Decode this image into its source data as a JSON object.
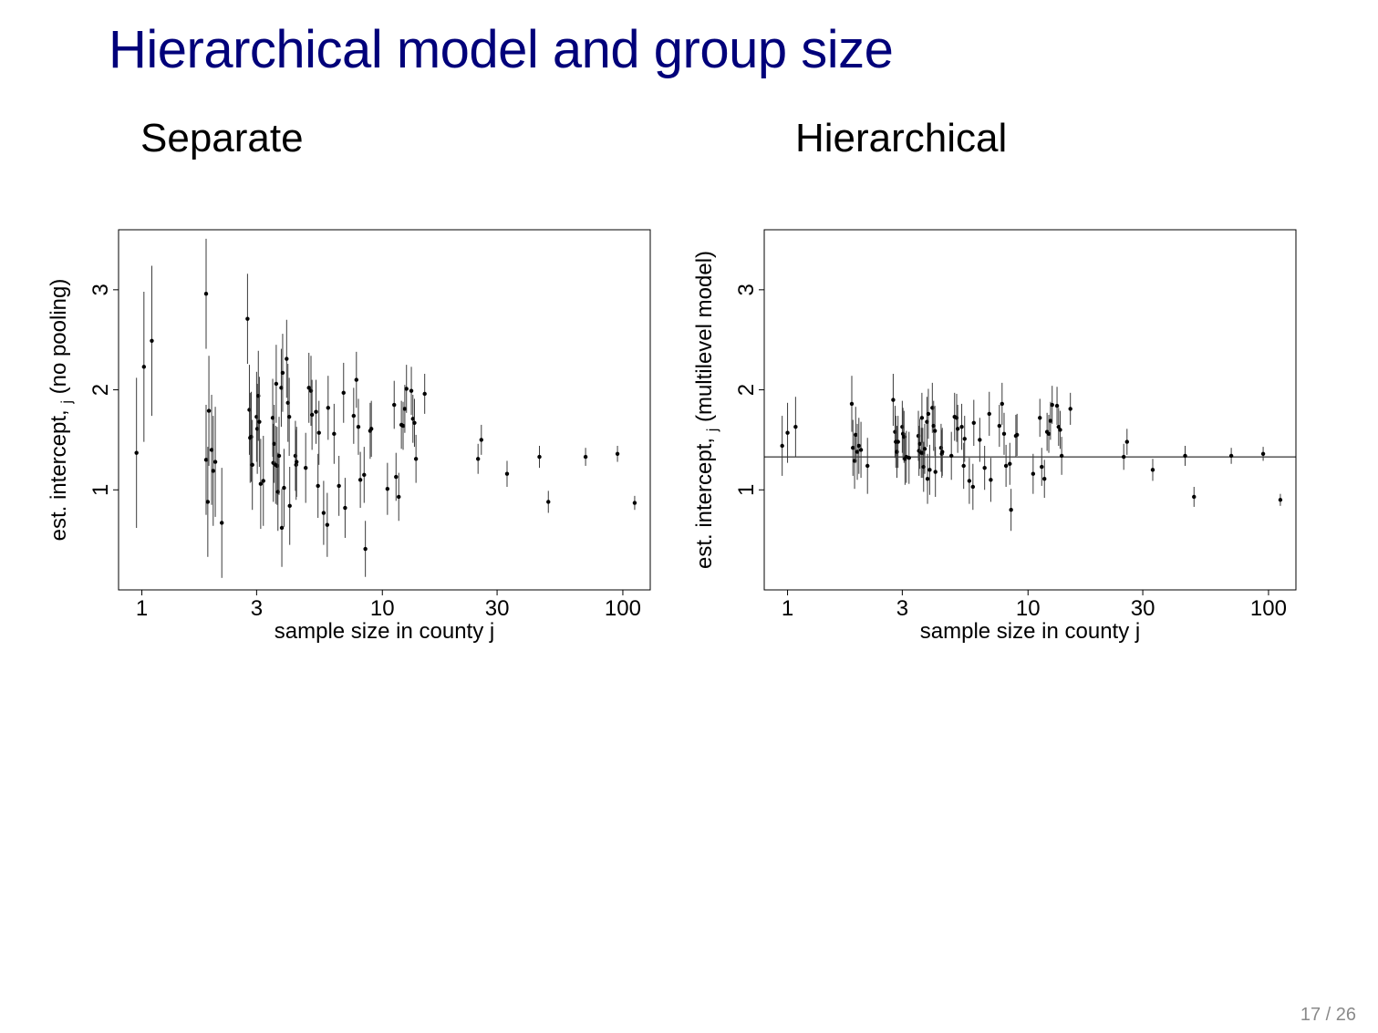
{
  "slide": {
    "title": "Hierarchical model and group size",
    "page_number": "17 / 26"
  },
  "colors": {
    "title": "#00007a",
    "points": "#000000",
    "intervals": "#3a3a3a",
    "frame": "#000000"
  },
  "chart_data": [
    {
      "type": "scatter",
      "title": "Separate",
      "xlabel": "sample size in county j",
      "ylabel": "est. intercept, α_j (no pooling)",
      "ylabel_parts": [
        "est. intercept,",
        "j",
        "(no pooling)"
      ],
      "x_scale": "log",
      "xlim": [
        0.8,
        130
      ],
      "ylim": [
        0,
        3.6
      ],
      "xticks": [
        1,
        3,
        10,
        30,
        100
      ],
      "xtick_labels": [
        "1",
        "3",
        "10",
        "30",
        "100"
      ],
      "yticks": [
        1,
        2,
        3
      ],
      "ytick_labels": [
        "1",
        "2",
        "3"
      ],
      "grid": false,
      "legend": null,
      "points": [
        {
          "x": 0.95,
          "y": 1.37,
          "lo": 0.62,
          "hi": 2.12
        },
        {
          "x": 1.02,
          "y": 2.23,
          "lo": 1.48,
          "hi": 2.98
        },
        {
          "x": 1.1,
          "y": 2.49,
          "lo": 1.74,
          "hi": 3.24
        },
        {
          "x": 1.85,
          "y": 2.96,
          "lo": 2.41,
          "hi": 3.51
        },
        {
          "x": 1.85,
          "y": 1.3,
          "lo": 0.75,
          "hi": 1.85
        },
        {
          "x": 1.88,
          "y": 0.88,
          "lo": 0.33,
          "hi": 1.43
        },
        {
          "x": 1.9,
          "y": 1.79,
          "lo": 1.24,
          "hi": 2.34
        },
        {
          "x": 1.95,
          "y": 1.4,
          "lo": 0.85,
          "hi": 1.95
        },
        {
          "x": 1.98,
          "y": 1.19,
          "lo": 0.64,
          "hi": 1.74
        },
        {
          "x": 2.02,
          "y": 1.28,
          "lo": 0.73,
          "hi": 1.83
        },
        {
          "x": 2.15,
          "y": 0.67,
          "lo": 0.12,
          "hi": 1.22
        },
        {
          "x": 2.75,
          "y": 2.71,
          "lo": 2.26,
          "hi": 3.16
        },
        {
          "x": 2.8,
          "y": 1.8,
          "lo": 1.35,
          "hi": 2.25
        },
        {
          "x": 2.82,
          "y": 1.52,
          "lo": 1.07,
          "hi": 1.97
        },
        {
          "x": 2.85,
          "y": 1.53,
          "lo": 1.08,
          "hi": 1.98
        },
        {
          "x": 2.88,
          "y": 1.25,
          "lo": 0.8,
          "hi": 1.7
        },
        {
          "x": 3.0,
          "y": 1.73,
          "lo": 1.28,
          "hi": 2.18
        },
        {
          "x": 3.02,
          "y": 1.61,
          "lo": 1.16,
          "hi": 2.06
        },
        {
          "x": 3.05,
          "y": 1.94,
          "lo": 1.49,
          "hi": 2.39
        },
        {
          "x": 3.08,
          "y": 1.68,
          "lo": 1.23,
          "hi": 2.13
        },
        {
          "x": 3.12,
          "y": 1.06,
          "lo": 0.61,
          "hi": 1.51
        },
        {
          "x": 3.2,
          "y": 1.09,
          "lo": 0.64,
          "hi": 1.54
        },
        {
          "x": 3.5,
          "y": 1.72,
          "lo": 1.33,
          "hi": 2.11
        },
        {
          "x": 3.52,
          "y": 1.27,
          "lo": 0.88,
          "hi": 1.66
        },
        {
          "x": 3.55,
          "y": 1.46,
          "lo": 1.07,
          "hi": 1.85
        },
        {
          "x": 3.6,
          "y": 1.25,
          "lo": 0.86,
          "hi": 1.64
        },
        {
          "x": 3.62,
          "y": 2.06,
          "lo": 1.67,
          "hi": 2.45
        },
        {
          "x": 3.65,
          "y": 1.24,
          "lo": 0.85,
          "hi": 1.63
        },
        {
          "x": 3.68,
          "y": 0.98,
          "lo": 0.59,
          "hi": 1.37
        },
        {
          "x": 3.72,
          "y": 1.34,
          "lo": 0.95,
          "hi": 1.73
        },
        {
          "x": 3.8,
          "y": 2.02,
          "lo": 1.63,
          "hi": 2.41
        },
        {
          "x": 3.82,
          "y": 0.62,
          "lo": 0.23,
          "hi": 1.01
        },
        {
          "x": 3.85,
          "y": 2.17,
          "lo": 1.78,
          "hi": 2.56
        },
        {
          "x": 3.9,
          "y": 1.02,
          "lo": 0.63,
          "hi": 1.41
        },
        {
          "x": 4.0,
          "y": 2.31,
          "lo": 1.92,
          "hi": 2.7
        },
        {
          "x": 4.05,
          "y": 1.87,
          "lo": 1.48,
          "hi": 2.26
        },
        {
          "x": 4.1,
          "y": 1.73,
          "lo": 1.34,
          "hi": 2.12
        },
        {
          "x": 4.12,
          "y": 0.84,
          "lo": 0.45,
          "hi": 1.23
        },
        {
          "x": 4.35,
          "y": 1.34,
          "lo": 0.99,
          "hi": 1.69
        },
        {
          "x": 4.38,
          "y": 1.25,
          "lo": 0.9,
          "hi": 1.6
        },
        {
          "x": 4.4,
          "y": 1.28,
          "lo": 0.93,
          "hi": 1.63
        },
        {
          "x": 4.8,
          "y": 1.22,
          "lo": 0.87,
          "hi": 1.57
        },
        {
          "x": 4.95,
          "y": 2.02,
          "lo": 1.67,
          "hi": 2.37
        },
        {
          "x": 5.05,
          "y": 1.99,
          "lo": 1.64,
          "hi": 2.34
        },
        {
          "x": 5.1,
          "y": 1.75,
          "lo": 1.4,
          "hi": 2.1
        },
        {
          "x": 5.3,
          "y": 1.78,
          "lo": 1.46,
          "hi": 2.1
        },
        {
          "x": 5.4,
          "y": 1.04,
          "lo": 0.72,
          "hi": 1.36
        },
        {
          "x": 5.45,
          "y": 1.57,
          "lo": 1.25,
          "hi": 1.89
        },
        {
          "x": 5.7,
          "y": 0.77,
          "lo": 0.45,
          "hi": 1.09
        },
        {
          "x": 5.9,
          "y": 0.65,
          "lo": 0.33,
          "hi": 0.97
        },
        {
          "x": 5.95,
          "y": 1.82,
          "lo": 1.5,
          "hi": 2.14
        },
        {
          "x": 6.3,
          "y": 1.56,
          "lo": 1.26,
          "hi": 1.86
        },
        {
          "x": 6.6,
          "y": 1.04,
          "lo": 0.74,
          "hi": 1.34
        },
        {
          "x": 6.9,
          "y": 1.97,
          "lo": 1.67,
          "hi": 2.27
        },
        {
          "x": 7.0,
          "y": 0.82,
          "lo": 0.52,
          "hi": 1.12
        },
        {
          "x": 7.6,
          "y": 1.74,
          "lo": 1.46,
          "hi": 2.02
        },
        {
          "x": 7.8,
          "y": 2.1,
          "lo": 1.82,
          "hi": 2.38
        },
        {
          "x": 7.95,
          "y": 1.63,
          "lo": 1.35,
          "hi": 1.91
        },
        {
          "x": 8.1,
          "y": 1.1,
          "lo": 0.82,
          "hi": 1.38
        },
        {
          "x": 8.4,
          "y": 1.15,
          "lo": 0.87,
          "hi": 1.43
        },
        {
          "x": 8.5,
          "y": 0.41,
          "lo": 0.13,
          "hi": 0.69
        },
        {
          "x": 8.9,
          "y": 1.59,
          "lo": 1.31,
          "hi": 1.87
        },
        {
          "x": 9.0,
          "y": 1.61,
          "lo": 1.33,
          "hi": 1.89
        },
        {
          "x": 10.5,
          "y": 1.01,
          "lo": 0.75,
          "hi": 1.27
        },
        {
          "x": 11.2,
          "y": 1.85,
          "lo": 1.61,
          "hi": 2.09
        },
        {
          "x": 11.4,
          "y": 1.13,
          "lo": 0.89,
          "hi": 1.37
        },
        {
          "x": 11.7,
          "y": 0.93,
          "lo": 0.69,
          "hi": 1.17
        },
        {
          "x": 12.0,
          "y": 1.65,
          "lo": 1.41,
          "hi": 1.89
        },
        {
          "x": 12.2,
          "y": 1.64,
          "lo": 1.4,
          "hi": 1.88
        },
        {
          "x": 12.4,
          "y": 1.81,
          "lo": 1.57,
          "hi": 2.05
        },
        {
          "x": 12.6,
          "y": 2.01,
          "lo": 1.77,
          "hi": 2.25
        },
        {
          "x": 13.2,
          "y": 1.99,
          "lo": 1.75,
          "hi": 2.23
        },
        {
          "x": 13.4,
          "y": 1.71,
          "lo": 1.47,
          "hi": 1.95
        },
        {
          "x": 13.6,
          "y": 1.67,
          "lo": 1.43,
          "hi": 1.91
        },
        {
          "x": 13.8,
          "y": 1.31,
          "lo": 1.07,
          "hi": 1.55
        },
        {
          "x": 15.0,
          "y": 1.96,
          "lo": 1.76,
          "hi": 2.16
        },
        {
          "x": 25.0,
          "y": 1.31,
          "lo": 1.16,
          "hi": 1.46
        },
        {
          "x": 25.8,
          "y": 1.5,
          "lo": 1.35,
          "hi": 1.65
        },
        {
          "x": 33.0,
          "y": 1.16,
          "lo": 1.03,
          "hi": 1.29
        },
        {
          "x": 45.0,
          "y": 1.33,
          "lo": 1.22,
          "hi": 1.44
        },
        {
          "x": 49.0,
          "y": 0.88,
          "lo": 0.77,
          "hi": 0.99
        },
        {
          "x": 70.0,
          "y": 1.33,
          "lo": 1.24,
          "hi": 1.42
        },
        {
          "x": 95.0,
          "y": 1.36,
          "lo": 1.28,
          "hi": 1.44
        },
        {
          "x": 112.0,
          "y": 0.87,
          "lo": 0.8,
          "hi": 0.94
        }
      ]
    },
    {
      "type": "scatter",
      "title": "Hierarchical",
      "xlabel": "sample size in county j",
      "ylabel": "est. intercept, α_j (multilevel model)",
      "ylabel_parts": [
        "est. intercept,",
        "j",
        "(multilevel model)"
      ],
      "x_scale": "log",
      "xlim": [
        0.8,
        130
      ],
      "ylim": [
        0,
        3.6
      ],
      "xticks": [
        1,
        3,
        10,
        30,
        100
      ],
      "xtick_labels": [
        "1",
        "3",
        "10",
        "30",
        "100"
      ],
      "yticks": [
        1,
        2,
        3
      ],
      "ytick_labels": [
        "1",
        "2",
        "3"
      ],
      "grid": false,
      "legend": null,
      "reference_line_y": 1.33,
      "points": [
        {
          "x": 0.95,
          "y": 1.44,
          "lo": 1.14,
          "hi": 1.74
        },
        {
          "x": 1.0,
          "y": 1.57,
          "lo": 1.27,
          "hi": 1.87
        },
        {
          "x": 1.08,
          "y": 1.63,
          "lo": 1.33,
          "hi": 1.93
        },
        {
          "x": 1.85,
          "y": 1.86,
          "lo": 1.58,
          "hi": 2.14
        },
        {
          "x": 1.87,
          "y": 1.42,
          "lo": 1.14,
          "hi": 1.7
        },
        {
          "x": 1.9,
          "y": 1.29,
          "lo": 1.01,
          "hi": 1.57
        },
        {
          "x": 1.92,
          "y": 1.55,
          "lo": 1.27,
          "hi": 1.83
        },
        {
          "x": 1.95,
          "y": 1.38,
          "lo": 1.1,
          "hi": 1.66
        },
        {
          "x": 1.98,
          "y": 1.44,
          "lo": 1.16,
          "hi": 1.72
        },
        {
          "x": 2.02,
          "y": 1.4,
          "lo": 1.12,
          "hi": 1.68
        },
        {
          "x": 2.15,
          "y": 1.24,
          "lo": 0.96,
          "hi": 1.52
        },
        {
          "x": 2.75,
          "y": 1.9,
          "lo": 1.64,
          "hi": 2.16
        },
        {
          "x": 2.8,
          "y": 1.58,
          "lo": 1.32,
          "hi": 1.84
        },
        {
          "x": 2.82,
          "y": 1.48,
          "lo": 1.22,
          "hi": 1.74
        },
        {
          "x": 2.85,
          "y": 1.38,
          "lo": 1.12,
          "hi": 1.64
        },
        {
          "x": 2.88,
          "y": 1.48,
          "lo": 1.22,
          "hi": 1.74
        },
        {
          "x": 3.0,
          "y": 1.63,
          "lo": 1.37,
          "hi": 1.89
        },
        {
          "x": 3.02,
          "y": 1.56,
          "lo": 1.3,
          "hi": 1.82
        },
        {
          "x": 3.05,
          "y": 1.53,
          "lo": 1.27,
          "hi": 1.79
        },
        {
          "x": 3.08,
          "y": 1.31,
          "lo": 1.05,
          "hi": 1.57
        },
        {
          "x": 3.12,
          "y": 1.33,
          "lo": 1.07,
          "hi": 1.59
        },
        {
          "x": 3.2,
          "y": 1.32,
          "lo": 1.06,
          "hi": 1.58
        },
        {
          "x": 3.5,
          "y": 1.54,
          "lo": 1.29,
          "hi": 1.79
        },
        {
          "x": 3.52,
          "y": 1.39,
          "lo": 1.14,
          "hi": 1.64
        },
        {
          "x": 3.55,
          "y": 1.46,
          "lo": 1.21,
          "hi": 1.71
        },
        {
          "x": 3.6,
          "y": 1.37,
          "lo": 1.12,
          "hi": 1.62
        },
        {
          "x": 3.62,
          "y": 1.72,
          "lo": 1.47,
          "hi": 1.97
        },
        {
          "x": 3.65,
          "y": 1.37,
          "lo": 1.12,
          "hi": 1.62
        },
        {
          "x": 3.68,
          "y": 1.23,
          "lo": 0.98,
          "hi": 1.48
        },
        {
          "x": 3.72,
          "y": 1.41,
          "lo": 1.16,
          "hi": 1.66
        },
        {
          "x": 3.8,
          "y": 1.68,
          "lo": 1.43,
          "hi": 1.93
        },
        {
          "x": 3.82,
          "y": 1.11,
          "lo": 0.86,
          "hi": 1.36
        },
        {
          "x": 3.85,
          "y": 1.76,
          "lo": 1.51,
          "hi": 2.01
        },
        {
          "x": 3.9,
          "y": 1.2,
          "lo": 0.95,
          "hi": 1.45
        },
        {
          "x": 4.0,
          "y": 1.82,
          "lo": 1.57,
          "hi": 2.07
        },
        {
          "x": 4.05,
          "y": 1.64,
          "lo": 1.39,
          "hi": 1.89
        },
        {
          "x": 4.1,
          "y": 1.59,
          "lo": 1.34,
          "hi": 1.84
        },
        {
          "x": 4.12,
          "y": 1.18,
          "lo": 0.93,
          "hi": 1.43
        },
        {
          "x": 4.35,
          "y": 1.42,
          "lo": 1.18,
          "hi": 1.66
        },
        {
          "x": 4.38,
          "y": 1.36,
          "lo": 1.12,
          "hi": 1.6
        },
        {
          "x": 4.4,
          "y": 1.38,
          "lo": 1.14,
          "hi": 1.62
        },
        {
          "x": 4.8,
          "y": 1.34,
          "lo": 1.1,
          "hi": 1.58
        },
        {
          "x": 4.95,
          "y": 1.73,
          "lo": 1.49,
          "hi": 1.97
        },
        {
          "x": 5.05,
          "y": 1.72,
          "lo": 1.48,
          "hi": 1.96
        },
        {
          "x": 5.1,
          "y": 1.61,
          "lo": 1.37,
          "hi": 1.85
        },
        {
          "x": 5.3,
          "y": 1.63,
          "lo": 1.4,
          "hi": 1.86
        },
        {
          "x": 5.4,
          "y": 1.24,
          "lo": 1.01,
          "hi": 1.47
        },
        {
          "x": 5.45,
          "y": 1.51,
          "lo": 1.28,
          "hi": 1.74
        },
        {
          "x": 5.7,
          "y": 1.09,
          "lo": 0.86,
          "hi": 1.32
        },
        {
          "x": 5.9,
          "y": 1.03,
          "lo": 0.8,
          "hi": 1.26
        },
        {
          "x": 5.95,
          "y": 1.67,
          "lo": 1.44,
          "hi": 1.9
        },
        {
          "x": 6.3,
          "y": 1.5,
          "lo": 1.28,
          "hi": 1.72
        },
        {
          "x": 6.6,
          "y": 1.22,
          "lo": 1.0,
          "hi": 1.44
        },
        {
          "x": 6.9,
          "y": 1.76,
          "lo": 1.54,
          "hi": 1.98
        },
        {
          "x": 7.0,
          "y": 1.1,
          "lo": 0.88,
          "hi": 1.32
        },
        {
          "x": 7.6,
          "y": 1.64,
          "lo": 1.43,
          "hi": 1.85
        },
        {
          "x": 7.8,
          "y": 1.86,
          "lo": 1.65,
          "hi": 2.07
        },
        {
          "x": 7.95,
          "y": 1.56,
          "lo": 1.35,
          "hi": 1.77
        },
        {
          "x": 8.1,
          "y": 1.24,
          "lo": 1.03,
          "hi": 1.45
        },
        {
          "x": 8.4,
          "y": 1.26,
          "lo": 1.05,
          "hi": 1.47
        },
        {
          "x": 8.5,
          "y": 0.8,
          "lo": 0.59,
          "hi": 1.01
        },
        {
          "x": 8.9,
          "y": 1.54,
          "lo": 1.33,
          "hi": 1.75
        },
        {
          "x": 9.0,
          "y": 1.55,
          "lo": 1.34,
          "hi": 1.76
        },
        {
          "x": 10.5,
          "y": 1.16,
          "lo": 0.96,
          "hi": 1.36
        },
        {
          "x": 11.2,
          "y": 1.72,
          "lo": 1.53,
          "hi": 1.91
        },
        {
          "x": 11.4,
          "y": 1.23,
          "lo": 1.04,
          "hi": 1.42
        },
        {
          "x": 11.7,
          "y": 1.11,
          "lo": 0.92,
          "hi": 1.3
        },
        {
          "x": 12.0,
          "y": 1.58,
          "lo": 1.39,
          "hi": 1.77
        },
        {
          "x": 12.2,
          "y": 1.56,
          "lo": 1.37,
          "hi": 1.75
        },
        {
          "x": 12.4,
          "y": 1.69,
          "lo": 1.5,
          "hi": 1.88
        },
        {
          "x": 12.6,
          "y": 1.85,
          "lo": 1.66,
          "hi": 2.04
        },
        {
          "x": 13.2,
          "y": 1.84,
          "lo": 1.65,
          "hi": 2.03
        },
        {
          "x": 13.4,
          "y": 1.63,
          "lo": 1.44,
          "hi": 1.82
        },
        {
          "x": 13.6,
          "y": 1.6,
          "lo": 1.41,
          "hi": 1.79
        },
        {
          "x": 13.8,
          "y": 1.34,
          "lo": 1.15,
          "hi": 1.53
        },
        {
          "x": 15.0,
          "y": 1.81,
          "lo": 1.65,
          "hi": 1.97
        },
        {
          "x": 25.0,
          "y": 1.33,
          "lo": 1.2,
          "hi": 1.46
        },
        {
          "x": 25.8,
          "y": 1.48,
          "lo": 1.35,
          "hi": 1.61
        },
        {
          "x": 33.0,
          "y": 1.2,
          "lo": 1.09,
          "hi": 1.31
        },
        {
          "x": 45.0,
          "y": 1.34,
          "lo": 1.24,
          "hi": 1.44
        },
        {
          "x": 49.0,
          "y": 0.93,
          "lo": 0.83,
          "hi": 1.03
        },
        {
          "x": 70.0,
          "y": 1.34,
          "lo": 1.26,
          "hi": 1.42
        },
        {
          "x": 95.0,
          "y": 1.36,
          "lo": 1.29,
          "hi": 1.43
        },
        {
          "x": 112.0,
          "y": 0.9,
          "lo": 0.84,
          "hi": 0.96
        }
      ]
    }
  ]
}
